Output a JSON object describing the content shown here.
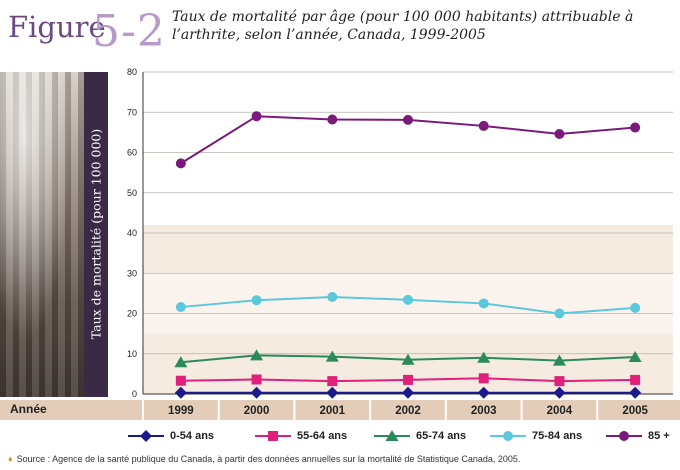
{
  "figure": {
    "word": "Figure",
    "number": "5-2",
    "title": "Taux de mortalité par âge (pour 100 000 habitants) attribuable à l’arthrite, selon l’année, Canada, 1999-2005"
  },
  "x_axis_label": "Année",
  "source": "Source : Agence de la santé publique du Canada, à partir des données annuelles sur la mortalité de Statistique Canada, 2005.",
  "colors": {
    "0-54": "#1a1a8c",
    "55-64": "#e0207a",
    "65-74": "#2a8a5a",
    "75-84": "#5bc8dc",
    "85+": "#7a1a7a",
    "ylabel_bar": "#3b2a45",
    "figure_number": "#b69ac9"
  },
  "chart_data": {
    "type": "line",
    "title": "Taux de mortalité par âge (pour 100 000 habitants) attribuable à l’arthrite, selon l’année, Canada, 1999-2005",
    "xlabel": "Année",
    "ylabel": "Taux de mortalité (pour 100 000)",
    "x": [
      "1999",
      "2000",
      "2001",
      "2002",
      "2003",
      "2004",
      "2005"
    ],
    "ylim": [
      0,
      80
    ],
    "yticks": [
      0,
      10,
      20,
      30,
      40,
      50,
      60,
      70,
      80
    ],
    "grid": true,
    "legend_position": "bottom",
    "series": [
      {
        "name": "0-54 ans",
        "marker": "diamond",
        "color": "#1a1a8c",
        "values": [
          0.3,
          0.3,
          0.3,
          0.3,
          0.3,
          0.3,
          0.3
        ]
      },
      {
        "name": "55-64 ans",
        "marker": "square",
        "color": "#e0207a",
        "values": [
          3.3,
          3.6,
          3.2,
          3.5,
          3.9,
          3.2,
          3.5
        ]
      },
      {
        "name": "65-74 ans",
        "marker": "triangle",
        "color": "#2a8a5a",
        "values": [
          7.9,
          9.6,
          9.3,
          8.5,
          9.0,
          8.3,
          9.2
        ]
      },
      {
        "name": "75-84 ans",
        "marker": "circle",
        "color": "#5bc8dc",
        "values": [
          21.6,
          23.3,
          24.1,
          23.4,
          22.5,
          20.0,
          21.4
        ]
      },
      {
        "name": "85 +",
        "marker": "circle",
        "color": "#7a1a7a",
        "values": [
          57.3,
          69.0,
          68.2,
          68.1,
          66.6,
          64.6,
          66.2
        ]
      }
    ]
  }
}
